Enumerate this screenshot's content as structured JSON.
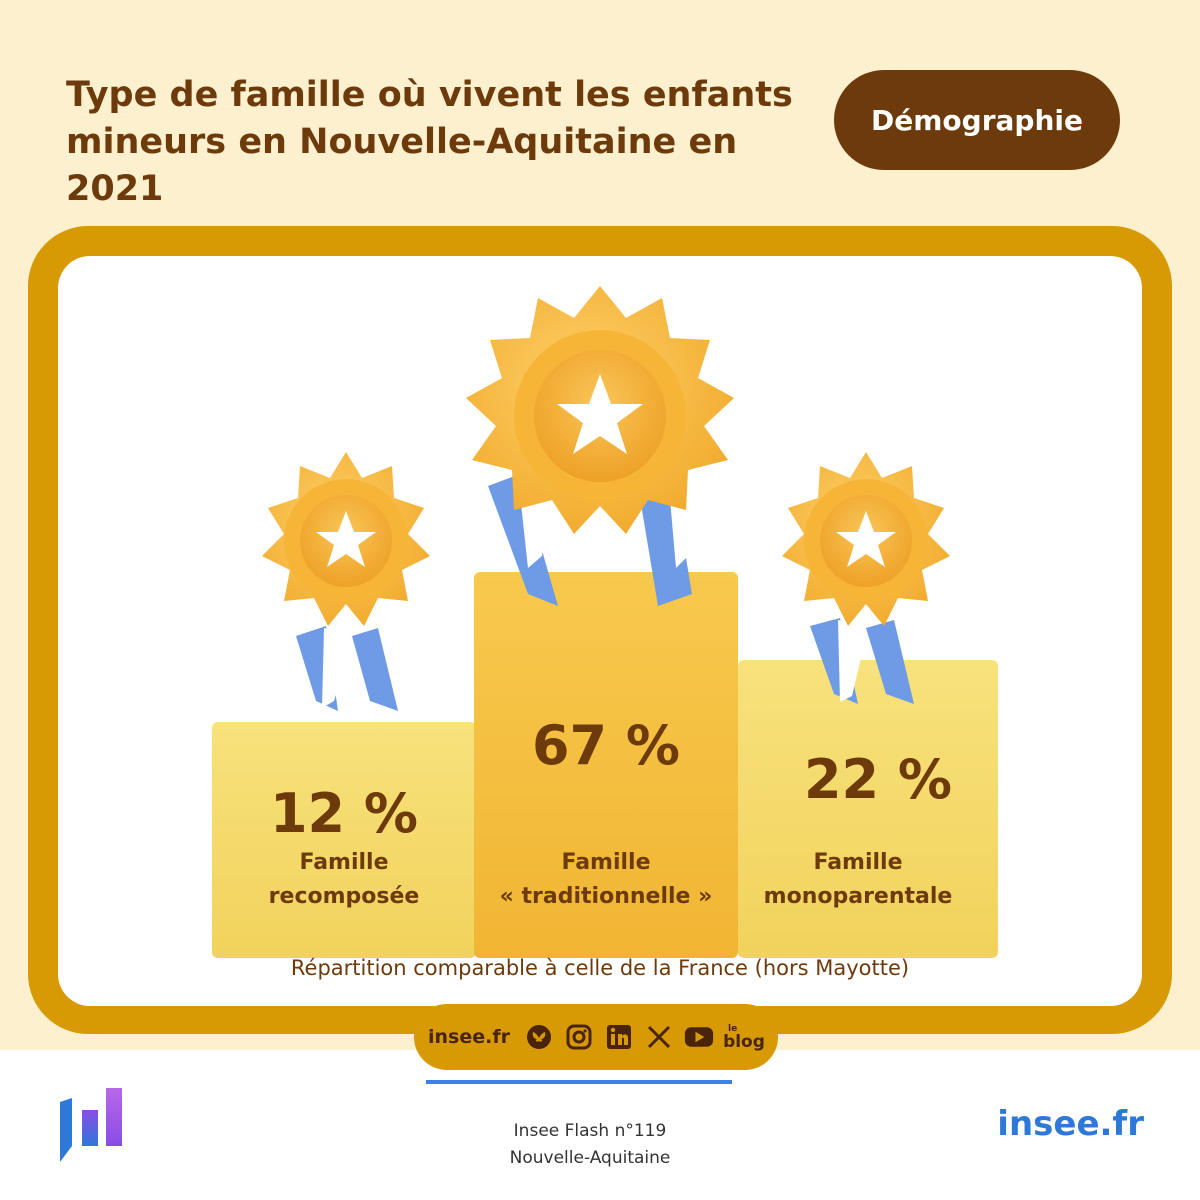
{
  "header": {
    "title": "Type de famille où vivent les enfants mineurs en Nouvelle-Aquitaine en 2021",
    "tag": "Démographie"
  },
  "podium": {
    "left": {
      "value": "12 %",
      "label_line1": "Famille",
      "label_line2": "recomposée"
    },
    "middle": {
      "value": "67 %",
      "label_line1": "Famille",
      "label_line2": "« traditionnelle »"
    },
    "right": {
      "value": "22 %",
      "label_line1": "Famille",
      "label_line2": "monoparentale"
    }
  },
  "note": "Répartition comparable à celle de la France (hors Mayotte)",
  "social": {
    "site": "insee.fr",
    "icons": [
      "bluesky-icon",
      "instagram-icon",
      "linkedin-icon",
      "x-icon",
      "youtube-icon",
      "blog-icon"
    ],
    "blog_top": "le",
    "blog_main": "blog"
  },
  "footer": {
    "publication": "Insee Flash n°119",
    "region": "Nouvelle-Aquitaine",
    "brand": "insee.fr"
  },
  "colors": {
    "background": "#fdf0cf",
    "brown": "#6d3a0c",
    "gold": "#d79a05",
    "medal": "#f7b93a",
    "ribbon": "#6f9be6",
    "brand_blue": "#2e78d8"
  }
}
